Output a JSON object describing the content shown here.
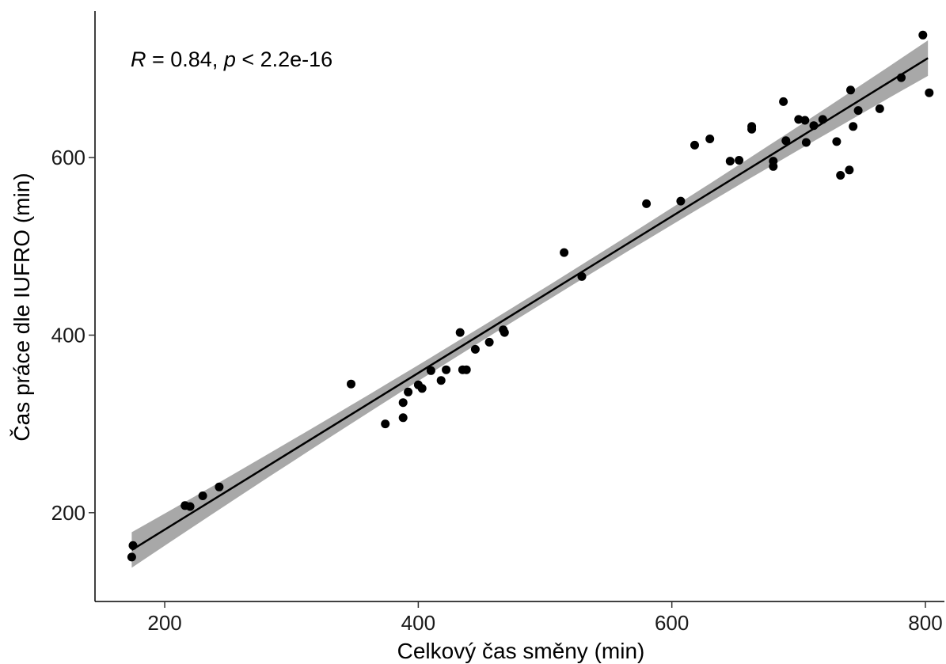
{
  "chart_data": {
    "type": "scatter",
    "xlabel": "Celkový čas směny (min)",
    "ylabel": "Čas práce dle IUFRO (min)",
    "xlim": [
      145,
      815
    ],
    "ylim": [
      100,
      765
    ],
    "x_ticks": [
      200,
      400,
      600,
      800
    ],
    "y_ticks": [
      200,
      400,
      600
    ],
    "grid": false,
    "annotation": {
      "r_symbol": "R",
      "r_text": " = 0.84, ",
      "p_symbol": "p",
      "p_text": " < 2.2e-16"
    },
    "regression": {
      "x_start": 174,
      "x_end": 802,
      "y_start": 158,
      "y_end": 712,
      "band_halfwidth_ends": 20,
      "band_halfwidth_center": 8,
      "line_color": "#000000",
      "band_color": "#999999"
    },
    "point_color": "#000000",
    "points": [
      [
        174,
        150
      ],
      [
        175,
        163
      ],
      [
        216,
        208
      ],
      [
        220,
        207
      ],
      [
        230,
        219
      ],
      [
        243,
        229
      ],
      [
        347,
        345
      ],
      [
        374,
        300
      ],
      [
        388,
        307
      ],
      [
        388,
        324
      ],
      [
        392,
        336
      ],
      [
        400,
        344
      ],
      [
        403,
        340
      ],
      [
        410,
        360
      ],
      [
        418,
        349
      ],
      [
        422,
        361
      ],
      [
        433,
        403
      ],
      [
        435,
        361
      ],
      [
        438,
        361
      ],
      [
        445,
        384
      ],
      [
        456,
        392
      ],
      [
        467,
        406
      ],
      [
        468,
        403
      ],
      [
        515,
        493
      ],
      [
        529,
        466
      ],
      [
        580,
        548
      ],
      [
        607,
        551
      ],
      [
        618,
        614
      ],
      [
        630,
        621
      ],
      [
        646,
        596
      ],
      [
        653,
        597
      ],
      [
        663,
        632
      ],
      [
        663,
        635
      ],
      [
        680,
        590
      ],
      [
        680,
        596
      ],
      [
        688,
        663
      ],
      [
        690,
        619
      ],
      [
        700,
        643
      ],
      [
        705,
        642
      ],
      [
        706,
        617
      ],
      [
        712,
        636
      ],
      [
        719,
        643
      ],
      [
        730,
        618
      ],
      [
        733,
        580
      ],
      [
        740,
        586
      ],
      [
        741,
        676
      ],
      [
        743,
        635
      ],
      [
        747,
        653
      ],
      [
        764,
        655
      ],
      [
        781,
        690
      ],
      [
        798,
        738
      ],
      [
        803,
        673
      ]
    ]
  }
}
